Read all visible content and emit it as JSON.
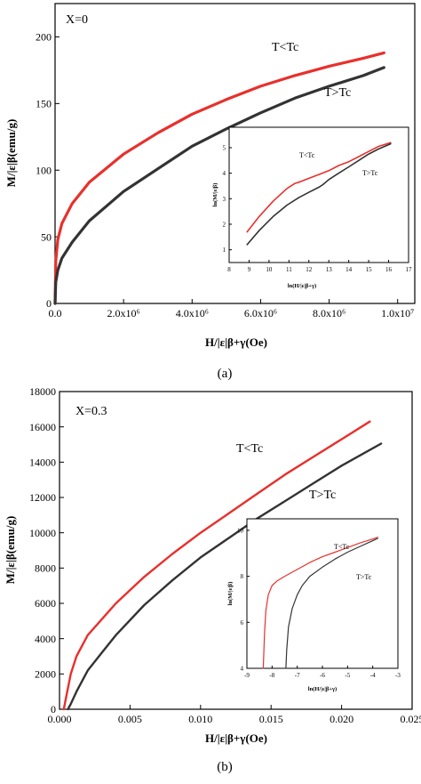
{
  "chart_data": [
    {
      "type": "line",
      "panel_label": "(a)",
      "annotation": "X=0",
      "xlabel": "H/|ε|β+γ(Oe)",
      "ylabel": "M/|ε|β(emu/g)",
      "xlim": [
        0,
        10500000
      ],
      "ylim": [
        0,
        225
      ],
      "x_tick_labels": [
        "0.0",
        "2.0x10⁶",
        "4.0x10⁶",
        "6.0x10⁶",
        "8.0x10⁶",
        "1.0x10⁷"
      ],
      "y_tick_labels": [
        "0",
        "50",
        "100",
        "150",
        "200"
      ],
      "colors": {
        "red": "#e8302c",
        "dark": "#333333"
      },
      "series": [
        {
          "name": "T<Tc",
          "color": "#e8302c",
          "x": [
            0,
            20000,
            80000,
            200000,
            500000,
            1000000,
            2000000,
            3000000,
            4000000,
            5000000,
            6000000,
            7000000,
            8000000,
            9000000,
            9600000
          ],
          "y": [
            0,
            32,
            48,
            60,
            75,
            91,
            112,
            128,
            142,
            153,
            163,
            171,
            178,
            184,
            188
          ]
        },
        {
          "name": "T>Tc",
          "color": "#333333",
          "x": [
            0,
            20000,
            80000,
            200000,
            500000,
            1000000,
            2000000,
            3000000,
            4000000,
            5000000,
            6000000,
            7000000,
            8000000,
            9000000,
            9600000
          ],
          "y": [
            0,
            16,
            25,
            34,
            46,
            62,
            84,
            101,
            118,
            131,
            143,
            154,
            163,
            171,
            177
          ]
        }
      ],
      "inset": {
        "xlabel": "ln(H/|ε|β+γ)",
        "ylabel": "ln(M/|ε|β)",
        "xlim": [
          8,
          17
        ],
        "ylim": [
          0.5,
          5.8
        ],
        "x_tick_labels": [
          "8",
          "9",
          "10",
          "11",
          "12",
          "13",
          "14",
          "15",
          "16",
          "17"
        ],
        "y_tick_labels": [
          "1",
          "2",
          "3",
          "4",
          "5"
        ],
        "series": [
          {
            "name": "T<Tc",
            "color": "#e8302c",
            "x": [
              8.9,
              9.5,
              10.2,
              10.9,
              11.3,
              11.5,
              12.0,
              12.5,
              13.0,
              13.5,
              14.0,
              14.5,
              15.0,
              15.5,
              16.1
            ],
            "y": [
              1.7,
              2.3,
              2.9,
              3.4,
              3.6,
              3.65,
              3.8,
              3.95,
              4.1,
              4.3,
              4.45,
              4.65,
              4.85,
              5.05,
              5.2
            ]
          },
          {
            "name": "T>Tc",
            "color": "#333333",
            "x": [
              8.9,
              9.5,
              10.2,
              10.9,
              11.5,
              12.0,
              12.5,
              12.7,
              13.0,
              13.5,
              14.0,
              14.5,
              15.0,
              15.5,
              16.1
            ],
            "y": [
              1.2,
              1.75,
              2.3,
              2.75,
              3.05,
              3.25,
              3.45,
              3.55,
              3.75,
              4.0,
              4.25,
              4.5,
              4.75,
              4.95,
              5.15
            ]
          }
        ]
      }
    },
    {
      "type": "line",
      "panel_label": "(b)",
      "annotation": "X=0.3",
      "xlabel": "H/|ε|β+γ(Oe)",
      "ylabel": "M/|ε|β(emu/g)",
      "xlim": [
        0,
        0.025
      ],
      "ylim": [
        0,
        18000
      ],
      "x_tick_labels": [
        "0.000",
        "0.005",
        "0.010",
        "0.015",
        "0.020",
        "0.025"
      ],
      "y_tick_labels": [
        "0",
        "2000",
        "4000",
        "6000",
        "8000",
        "10000",
        "12000",
        "14000",
        "16000",
        "18000"
      ],
      "series": [
        {
          "name": "T<Tc",
          "color": "#e8302c",
          "x": [
            0.0003,
            0.0005,
            0.0008,
            0.0012,
            0.002,
            0.004,
            0.006,
            0.008,
            0.01,
            0.012,
            0.014,
            0.016,
            0.018,
            0.02,
            0.022
          ],
          "y": [
            0,
            800,
            2000,
            3000,
            4200,
            6000,
            7500,
            8800,
            10000,
            11100,
            12200,
            13300,
            14300,
            15300,
            16300
          ]
        },
        {
          "name": "T>Tc",
          "color": "#333333",
          "x": [
            0.0006,
            0.0008,
            0.0012,
            0.002,
            0.003,
            0.004,
            0.006,
            0.008,
            0.01,
            0.012,
            0.014,
            0.016,
            0.018,
            0.02,
            0.0228
          ],
          "y": [
            0,
            300,
            1000,
            2200,
            3200,
            4200,
            5900,
            7300,
            8600,
            9700,
            10800,
            11800,
            12800,
            13800,
            15050
          ]
        }
      ],
      "inset": {
        "xlabel": "ln(H/|ε|β+γ)",
        "ylabel": "ln(M/|ε|β)",
        "xlim": [
          -9,
          -3
        ],
        "ylim": [
          4,
          10.5
        ],
        "x_tick_labels": [
          "-9",
          "-8",
          "-7",
          "-6",
          "-5",
          "-4",
          "-3"
        ],
        "y_tick_labels": [
          "4",
          "6",
          "8",
          "10"
        ],
        "series": [
          {
            "name": "T<Tc",
            "color": "#e8302c",
            "x": [
              -8.35,
              -8.3,
              -8.25,
              -8.15,
              -8.0,
              -7.8,
              -7.5,
              -7.0,
              -6.5,
              -6.0,
              -5.5,
              -5.0,
              -4.5,
              -4.0,
              -3.8
            ],
            "y": [
              4.0,
              5.5,
              6.5,
              7.2,
              7.6,
              7.8,
              8.0,
              8.3,
              8.6,
              8.85,
              9.05,
              9.25,
              9.45,
              9.62,
              9.7
            ]
          },
          {
            "name": "T>Tc",
            "color": "#333333",
            "x": [
              -7.45,
              -7.42,
              -7.35,
              -7.2,
              -7.0,
              -6.8,
              -6.5,
              -6.0,
              -5.5,
              -5.0,
              -4.5,
              -4.0,
              -3.8
            ],
            "y": [
              4.0,
              4.8,
              5.8,
              6.6,
              7.2,
              7.6,
              8.0,
              8.4,
              8.75,
              9.05,
              9.3,
              9.55,
              9.65
            ]
          }
        ]
      }
    }
  ]
}
